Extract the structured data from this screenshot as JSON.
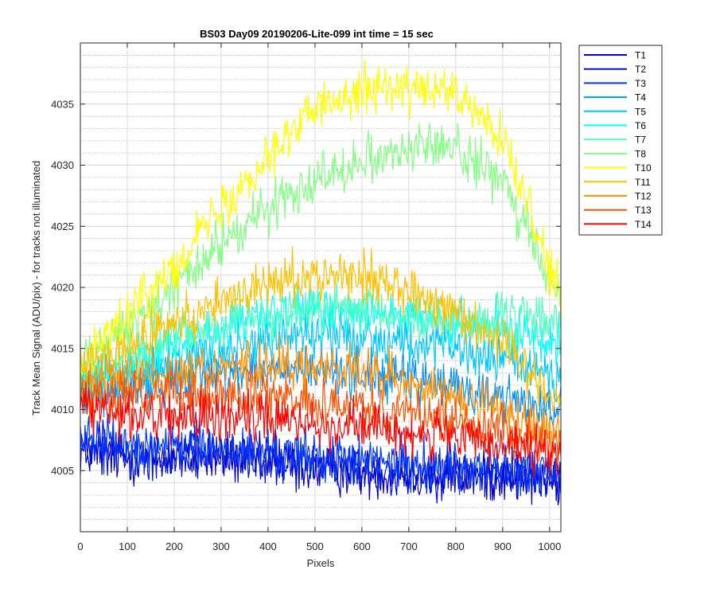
{
  "chart_data": {
    "type": "line",
    "title": "BS03 Day09 20190206-Lite-099 int time = 15 sec",
    "xlabel": "Pixels",
    "ylabel": "Track Mean Signal (ADU/pix) - for tracks not illuminated",
    "xlim": [
      0,
      1024
    ],
    "ylim": [
      4000,
      4040
    ],
    "xticks": [
      0,
      100,
      200,
      300,
      400,
      500,
      600,
      700,
      800,
      900,
      1000
    ],
    "yticks": [
      4005,
      4010,
      4015,
      4020,
      4025,
      4030,
      4035
    ],
    "yminor_step": 1,
    "grid": "major solid x, minor dotted y",
    "legend_position": "outside top-right",
    "series": [
      {
        "name": "T1",
        "color": "#0000c8",
        "x": [
          0,
          100,
          200,
          300,
          400,
          500,
          600,
          700,
          800,
          900,
          1024
        ],
        "y": [
          4006.5,
          4006.0,
          4006.0,
          4006.0,
          4005.6,
          4005.2,
          4004.8,
          4004.6,
          4004.5,
          4004.5,
          4004.0
        ]
      },
      {
        "name": "T2",
        "color": "#0010d8",
        "x": [
          0,
          100,
          200,
          300,
          400,
          500,
          600,
          700,
          800,
          900,
          1024
        ],
        "y": [
          4007.0,
          4006.6,
          4006.4,
          4006.3,
          4006.0,
          4005.6,
          4005.2,
          4005.0,
          4004.9,
          4004.8,
          4004.4
        ]
      },
      {
        "name": "T3",
        "color": "#0038ff",
        "x": [
          0,
          100,
          200,
          300,
          400,
          500,
          600,
          700,
          800,
          900,
          1024
        ],
        "y": [
          4007.6,
          4007.2,
          4007.0,
          4006.8,
          4006.5,
          4006.2,
          4005.8,
          4005.6,
          4005.4,
          4005.2,
          4004.8
        ]
      },
      {
        "name": "T4",
        "color": "#0090ff",
        "x": [
          0,
          100,
          200,
          300,
          400,
          500,
          600,
          700,
          800,
          900,
          1024
        ],
        "y": [
          4011.0,
          4011.8,
          4012.6,
          4013.0,
          4013.2,
          4013.2,
          4013.0,
          4012.4,
          4011.8,
          4011.0,
          4010.0
        ]
      },
      {
        "name": "T5",
        "color": "#00c8ff",
        "x": [
          0,
          100,
          200,
          300,
          400,
          500,
          600,
          700,
          800,
          900,
          1024
        ],
        "y": [
          4011.5,
          4012.6,
          4013.8,
          4015.0,
          4015.8,
          4016.3,
          4016.0,
          4015.5,
          4014.8,
          4014.0,
          4013.0
        ]
      },
      {
        "name": "T6",
        "color": "#00ffff",
        "x": [
          0,
          100,
          200,
          300,
          400,
          500,
          600,
          700,
          800,
          900,
          1024
        ],
        "y": [
          4012.0,
          4013.6,
          4015.2,
          4016.6,
          4017.6,
          4018.2,
          4018.2,
          4017.6,
          4017.0,
          4016.4,
          4015.8
        ]
      },
      {
        "name": "T7",
        "color": "#50ffc0",
        "x": [
          0,
          100,
          200,
          300,
          400,
          500,
          600,
          700,
          800,
          900,
          1024
        ],
        "y": [
          4012.5,
          4014.2,
          4015.8,
          4017.2,
          4017.8,
          4018.2,
          4018.0,
          4017.5,
          4017.2,
          4017.3,
          4017.5
        ]
      },
      {
        "name": "T8",
        "color": "#80ff80",
        "x": [
          0,
          100,
          200,
          300,
          400,
          500,
          600,
          700,
          800,
          900,
          1024
        ],
        "y": [
          4014.0,
          4016.5,
          4020.0,
          4023.5,
          4026.5,
          4029.0,
          4030.5,
          4031.5,
          4031.5,
          4028.5,
          4019.0
        ]
      },
      {
        "name": "T10",
        "color": "#ffff00",
        "x": [
          0,
          100,
          200,
          300,
          400,
          500,
          600,
          700,
          800,
          900,
          1024
        ],
        "y": [
          4014.5,
          4017.5,
          4022.0,
          4026.5,
          4031.0,
          4034.5,
          4036.5,
          4036.2,
          4035.8,
          4032.0,
          4019.0
        ]
      },
      {
        "name": "T11",
        "color": "#ffc000",
        "x": [
          0,
          100,
          200,
          300,
          400,
          500,
          600,
          700,
          800,
          900,
          1024
        ],
        "y": [
          4013.5,
          4015.0,
          4017.0,
          4018.8,
          4020.2,
          4021.2,
          4021.0,
          4019.8,
          4018.2,
          4015.5,
          4010.5
        ]
      },
      {
        "name": "T12",
        "color": "#ff9000",
        "x": [
          0,
          100,
          200,
          300,
          400,
          500,
          600,
          700,
          800,
          900,
          1024
        ],
        "y": [
          4012.5,
          4012.8,
          4013.2,
          4013.5,
          4013.6,
          4013.5,
          4013.0,
          4012.2,
          4011.0,
          4009.8,
          4008.0
        ]
      },
      {
        "name": "T13",
        "color": "#ff5000",
        "x": [
          0,
          100,
          200,
          300,
          400,
          500,
          600,
          700,
          800,
          900,
          1024
        ],
        "y": [
          4011.5,
          4011.2,
          4011.2,
          4011.2,
          4011.0,
          4010.8,
          4010.4,
          4009.8,
          4009.0,
          4008.2,
          4006.8
        ]
      },
      {
        "name": "T14",
        "color": "#ff0000",
        "x": [
          0,
          100,
          200,
          300,
          400,
          500,
          600,
          700,
          800,
          900,
          1024
        ],
        "y": [
          4010.5,
          4009.6,
          4009.4,
          4009.4,
          4009.2,
          4009.0,
          4008.6,
          4008.2,
          4007.6,
          4007.0,
          4006.0
        ]
      }
    ]
  }
}
